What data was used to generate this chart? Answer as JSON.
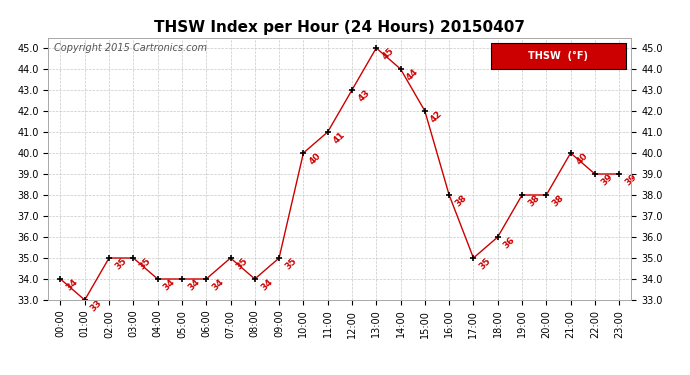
{
  "title": "THSW Index per Hour (24 Hours) 20150407",
  "copyright_text": "Copyright 2015 Cartronics.com",
  "legend_label": "THSW  (°F)",
  "hours": [
    0,
    1,
    2,
    3,
    4,
    5,
    6,
    7,
    8,
    9,
    10,
    11,
    12,
    13,
    14,
    15,
    16,
    17,
    18,
    19,
    20,
    21,
    22,
    23
  ],
  "values": [
    34,
    33,
    35,
    35,
    34,
    34,
    34,
    35,
    34,
    35,
    40,
    41,
    43,
    45,
    44,
    42,
    38,
    35,
    36,
    38,
    38,
    40,
    39,
    39
  ],
  "xlabels": [
    "00:00",
    "01:00",
    "02:00",
    "03:00",
    "04:00",
    "05:00",
    "06:00",
    "07:00",
    "08:00",
    "09:00",
    "10:00",
    "11:00",
    "12:00",
    "13:00",
    "14:00",
    "15:00",
    "16:00",
    "17:00",
    "18:00",
    "19:00",
    "20:00",
    "21:00",
    "22:00",
    "23:00"
  ],
  "ylim": [
    33.0,
    45.5
  ],
  "yticks": [
    33.0,
    34.0,
    35.0,
    36.0,
    37.0,
    38.0,
    39.0,
    40.0,
    41.0,
    42.0,
    43.0,
    44.0,
    45.0
  ],
  "line_color": "#cc0000",
  "marker_color": "#000000",
  "label_color": "#cc0000",
  "background_color": "#ffffff",
  "grid_color": "#c8c8c8",
  "title_fontsize": 11,
  "copyright_fontsize": 7,
  "label_fontsize": 6.5,
  "tick_fontsize": 7,
  "legend_bg": "#cc0000",
  "legend_text_color": "#ffffff"
}
